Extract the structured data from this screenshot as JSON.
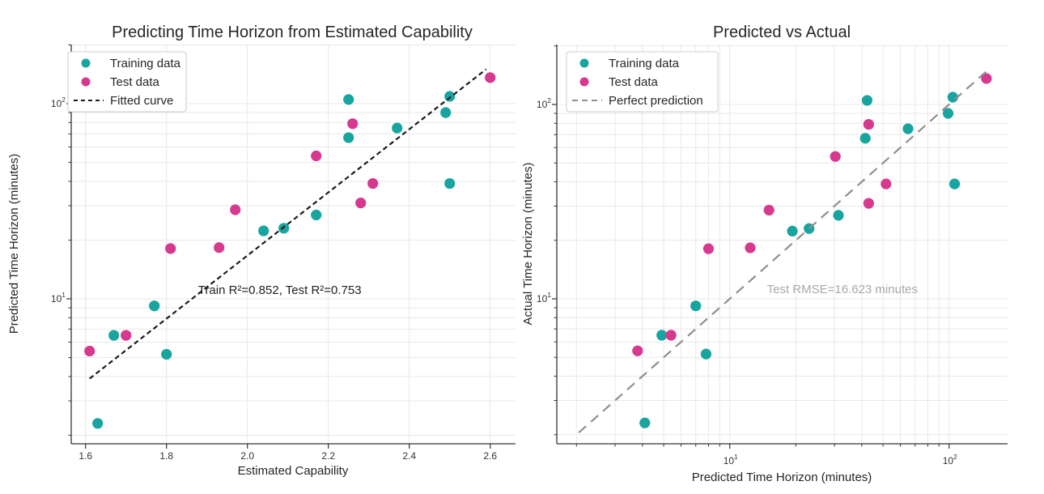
{
  "figure": {
    "background": "#ffffff"
  },
  "colors": {
    "training": "#18A5A0",
    "test": "#D6398F",
    "fitted_line": "#1b1b1b",
    "perfect_line": "#8f8f8f",
    "grid": "#e8e8e8",
    "axis": "#333333",
    "title_text": "#262626",
    "label_text": "#262626",
    "tick_text": "#333333",
    "annotation_dark": "#1f1f1f",
    "annotation_muted": "#a8a8a8",
    "legend_border": "#cccccc",
    "legend_bg": "#ffffff"
  },
  "chart_data": [
    {
      "type": "scatter",
      "title": "Predicting Time Horizon from Estimated Capability",
      "xlabel": "Estimated Capability",
      "ylabel": "Predicted Time Horizon (minutes)",
      "x_scale": "linear",
      "y_scale": "log",
      "xlim": [
        1.56,
        2.66
      ],
      "ylim": [
        1.8,
        200
      ],
      "grid": true,
      "legend_position": "upper left",
      "x_ticks": [
        1.6,
        1.8,
        2.0,
        2.2,
        2.4,
        2.6
      ],
      "x_tick_labels": [
        "1.6",
        "1.8",
        "2.0",
        "2.2",
        "2.4",
        "2.6"
      ],
      "y_ticks": [
        10,
        100
      ],
      "y_tick_labels": [
        "10^1",
        "10^2"
      ],
      "y_minor_ticks": [
        2,
        3,
        4,
        5,
        6,
        7,
        8,
        9,
        20,
        30,
        40,
        50,
        60,
        70,
        80,
        90,
        200
      ],
      "legend": {
        "entries": [
          {
            "label": "Training data",
            "swatch": "dot",
            "color_key": "training"
          },
          {
            "label": "Test data",
            "swatch": "dot",
            "color_key": "test"
          },
          {
            "label": "Fitted curve",
            "swatch": "dash",
            "color_key": "fitted_line"
          }
        ]
      },
      "annotation": {
        "text": "Train R²=0.852, Test R²=0.753",
        "x": 2.08,
        "y": 11.1,
        "color_key": "annotation_dark"
      },
      "series": [
        {
          "name": "Training data",
          "kind": "scatter",
          "color_key": "training",
          "points": [
            [
              1.63,
              2.3
            ],
            [
              1.67,
              6.5
            ],
            [
              1.77,
              9.2
            ],
            [
              1.8,
              5.2
            ],
            [
              2.04,
              22.3
            ],
            [
              2.09,
              23.0
            ],
            [
              2.17,
              26.9
            ],
            [
              2.25,
              67
            ],
            [
              2.25,
              105
            ],
            [
              2.37,
              75
            ],
            [
              2.49,
              90
            ],
            [
              2.5,
              39
            ],
            [
              2.5,
              109
            ]
          ]
        },
        {
          "name": "Test data",
          "kind": "scatter",
          "color_key": "test",
          "points": [
            [
              1.61,
              5.4
            ],
            [
              1.7,
              6.5
            ],
            [
              1.81,
              18.1
            ],
            [
              1.93,
              18.3
            ],
            [
              1.97,
              28.6
            ],
            [
              2.17,
              54
            ],
            [
              2.26,
              79
            ],
            [
              2.28,
              31
            ],
            [
              2.31,
              39
            ],
            [
              2.6,
              136
            ]
          ]
        },
        {
          "name": "Fitted curve",
          "kind": "line",
          "color_key": "fitted_line",
          "points": [
            [
              1.61,
              3.9
            ],
            [
              2.59,
              150
            ]
          ]
        }
      ]
    },
    {
      "type": "scatter",
      "title": "Predicted vs Actual",
      "xlabel": "Predicted Time Horizon (minutes)",
      "ylabel": "Actual Time Horizon (minutes)",
      "x_scale": "log",
      "y_scale": "log",
      "xlim": [
        1.63,
        185
      ],
      "ylim": [
        1.8,
        203
      ],
      "grid": true,
      "legend_position": "upper left",
      "x_ticks": [
        10,
        100
      ],
      "x_tick_labels": [
        "10^1",
        "10^2"
      ],
      "x_minor_ticks": [
        2,
        3,
        4,
        5,
        6,
        7,
        8,
        9,
        20,
        30,
        40,
        50,
        60,
        70,
        80,
        90
      ],
      "y_ticks": [
        10,
        100
      ],
      "y_tick_labels": [
        "10^1",
        "10^2"
      ],
      "y_minor_ticks": [
        2,
        3,
        4,
        5,
        6,
        7,
        8,
        9,
        20,
        30,
        40,
        50,
        60,
        70,
        80,
        90,
        200
      ],
      "legend": {
        "entries": [
          {
            "label": "Training data",
            "swatch": "dot",
            "color_key": "training"
          },
          {
            "label": "Test data",
            "swatch": "dot",
            "color_key": "test"
          },
          {
            "label": "Perfect prediction",
            "swatch": "dash",
            "color_key": "perfect_line"
          }
        ]
      },
      "annotation": {
        "text": "Test RMSE=16.623 minutes",
        "x": 32.6,
        "y": 11.2,
        "color_key": "annotation_muted"
      },
      "series": [
        {
          "name": "Training data",
          "kind": "scatter",
          "color_key": "training",
          "points": [
            [
              4.1,
              2.3
            ],
            [
              4.9,
              6.5
            ],
            [
              7.0,
              9.2
            ],
            [
              7.8,
              5.2
            ],
            [
              19.3,
              22.3
            ],
            [
              23.0,
              23.0
            ],
            [
              31.3,
              26.9
            ],
            [
              41.5,
              67
            ],
            [
              42.3,
              105
            ],
            [
              65,
              75
            ],
            [
              99,
              90
            ],
            [
              106,
              39
            ],
            [
              104,
              109
            ]
          ]
        },
        {
          "name": "Test data",
          "kind": "scatter",
          "color_key": "test",
          "points": [
            [
              3.8,
              5.4
            ],
            [
              5.4,
              6.5
            ],
            [
              8.0,
              18.1
            ],
            [
              12.4,
              18.3
            ],
            [
              15.1,
              28.6
            ],
            [
              30.3,
              54
            ],
            [
              43,
              79
            ],
            [
              43,
              31
            ],
            [
              51.6,
              39
            ],
            [
              148,
              136
            ]
          ]
        },
        {
          "name": "Perfect prediction",
          "kind": "line",
          "color_key": "perfect_line",
          "points": [
            [
              2.05,
              2.05
            ],
            [
              150,
              150
            ]
          ]
        }
      ]
    }
  ]
}
